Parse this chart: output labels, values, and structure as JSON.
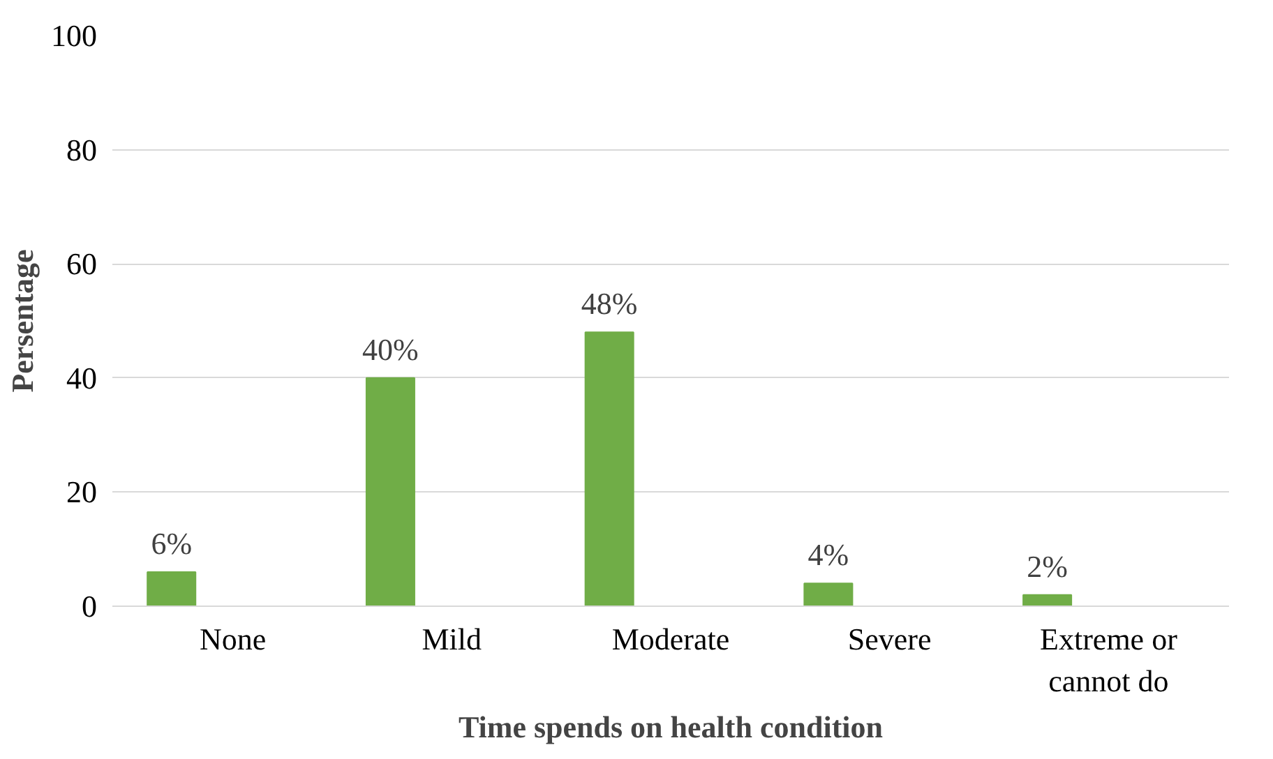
{
  "chart_data": {
    "type": "bar",
    "xlabel": "Time spends on health condition",
    "ylabel": "Persentage",
    "categories": [
      "None",
      "Mild",
      "Moderate",
      "Severe",
      "Extreme or cannot do"
    ],
    "values": [
      6,
      40,
      48,
      4,
      2
    ],
    "value_labels": [
      "6%",
      "40%",
      "48%",
      "4%",
      "2%"
    ],
    "color": "#70ad47",
    "ylim": [
      0,
      100
    ],
    "yticks": [
      0,
      20,
      40,
      60,
      80,
      100
    ],
    "grid": "y"
  }
}
